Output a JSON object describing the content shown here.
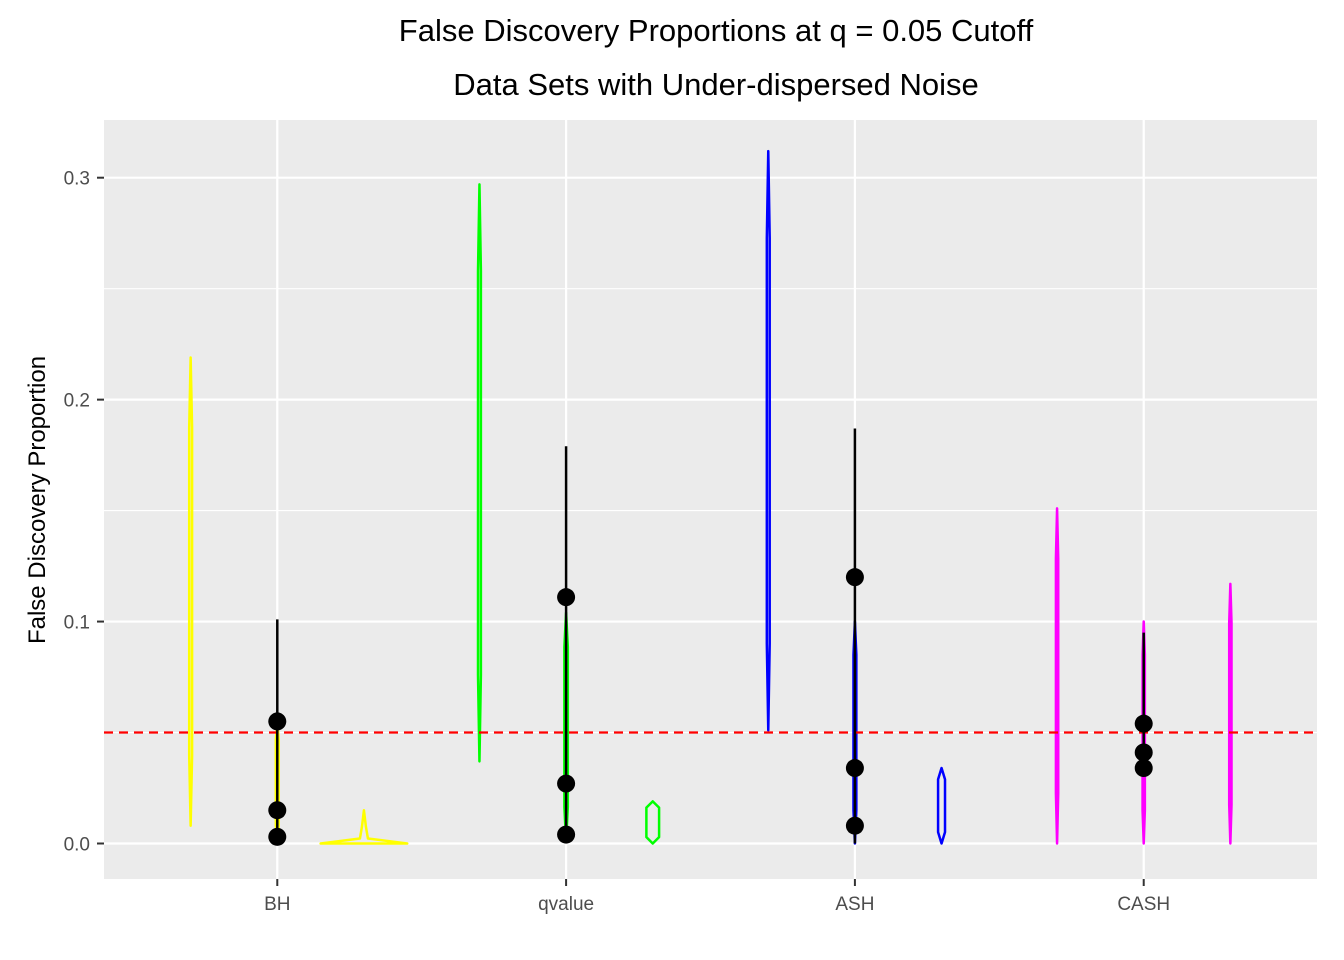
{
  "chart_data": {
    "type": "violin",
    "title": "False Discovery Proportions at q = 0.05 Cutoff",
    "subtitle": "Data Sets with Under-dispersed Noise",
    "xlabel": "",
    "ylabel": "False Discovery Proportion",
    "categories": [
      "BH",
      "qvalue",
      "ASH",
      "CASH"
    ],
    "y_ticks": [
      0.0,
      0.1,
      0.2,
      0.3
    ],
    "y_tick_labels": [
      "0.0",
      "0.1",
      "0.2",
      "0.3"
    ],
    "ylim": [
      -0.016,
      0.326
    ],
    "grid": true,
    "reference_line": {
      "y": 0.05,
      "color": "#ff0000",
      "style": "dashed"
    },
    "groups": [
      {
        "category": "BH",
        "color": "#ffff00",
        "violins": [
          {
            "offset": -0.3,
            "min": 0.008,
            "max": 0.219,
            "max_halfwidth": 0.005
          },
          {
            "offset": 0.0,
            "min": 0.0,
            "max": 0.055,
            "max_halfwidth": 0.005
          },
          {
            "offset": 0.3,
            "min": 0.0,
            "max": 0.015,
            "max_halfwidth": 0.15
          }
        ],
        "summaries": [
          {
            "offset": 0.0,
            "lower": 0.0,
            "upper": 0.101,
            "points": [
              0.055,
              0.015,
              0.003
            ]
          }
        ]
      },
      {
        "category": "qvalue",
        "color": "#00ff00",
        "violins": [
          {
            "offset": -0.3,
            "min": 0.037,
            "max": 0.297,
            "max_halfwidth": 0.005
          },
          {
            "offset": 0.0,
            "min": 0.001,
            "max": 0.104,
            "max_halfwidth": 0.006
          },
          {
            "offset": 0.3,
            "min": 0.0,
            "max": 0.019,
            "max_halfwidth": 0.022
          }
        ],
        "summaries": [
          {
            "offset": 0.0,
            "lower": 0.0,
            "upper": 0.179,
            "points": [
              0.111,
              0.027,
              0.004
            ]
          }
        ]
      },
      {
        "category": "ASH",
        "color": "#0000ff",
        "violins": [
          {
            "offset": -0.3,
            "min": 0.051,
            "max": 0.312,
            "max_halfwidth": 0.005
          },
          {
            "offset": 0.0,
            "min": 0.0,
            "max": 0.1,
            "max_halfwidth": 0.005
          },
          {
            "offset": 0.3,
            "min": 0.0,
            "max": 0.034,
            "max_halfwidth": 0.012
          }
        ],
        "summaries": [
          {
            "offset": 0.0,
            "lower": 0.0,
            "upper": 0.187,
            "points": [
              0.12,
              0.034,
              0.008
            ]
          }
        ]
      },
      {
        "category": "CASH",
        "color": "#ff00ff",
        "violins": [
          {
            "offset": -0.3,
            "min": 0.0,
            "max": 0.151,
            "max_halfwidth": 0.004
          },
          {
            "offset": 0.0,
            "min": 0.0,
            "max": 0.1,
            "max_halfwidth": 0.004
          },
          {
            "offset": 0.3,
            "min": 0.0,
            "max": 0.117,
            "max_halfwidth": 0.004
          }
        ],
        "summaries": [
          {
            "offset": 0.0,
            "lower": 0.034,
            "upper": 0.095,
            "points": [
              0.054,
              0.041,
              0.034
            ]
          }
        ]
      }
    ]
  }
}
